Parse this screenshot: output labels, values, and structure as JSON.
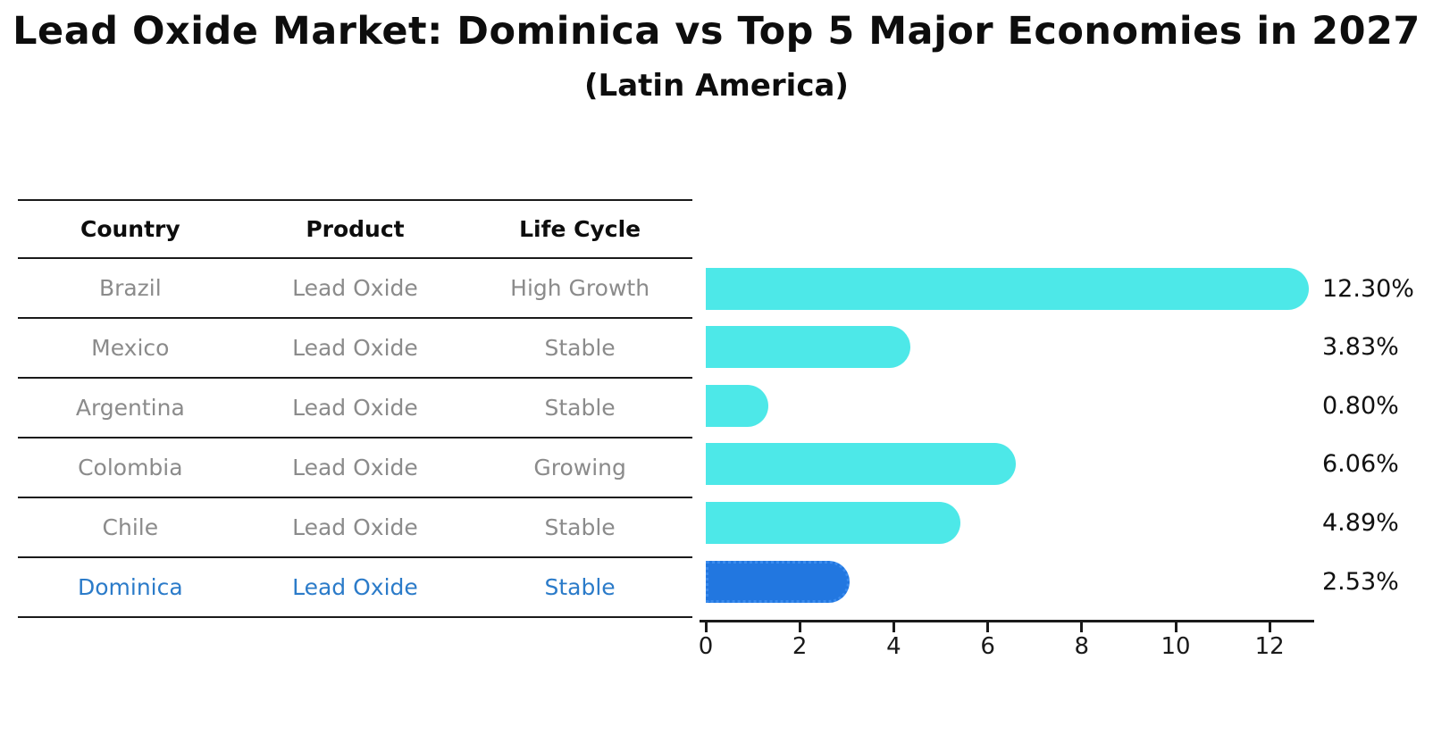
{
  "title": "Lead Oxide Market: Dominica vs Top 5 Major Economies in 2027",
  "subtitle": "(Latin America)",
  "table": {
    "headers": [
      "Country",
      "Product",
      "Life Cycle"
    ],
    "rows": [
      {
        "country": "Brazil",
        "product": "Lead Oxide",
        "life_cycle": "High Growth",
        "highlighted": false
      },
      {
        "country": "Mexico",
        "product": "Lead Oxide",
        "life_cycle": "Stable",
        "highlighted": false
      },
      {
        "country": "Argentina",
        "product": "Lead Oxide",
        "life_cycle": "Stable",
        "highlighted": false
      },
      {
        "country": "Colombia",
        "product": "Lead Oxide",
        "life_cycle": "Growing",
        "highlighted": false
      },
      {
        "country": "Chile",
        "product": "Lead Oxide",
        "life_cycle": "Stable",
        "highlighted": false
      },
      {
        "country": "Dominica",
        "product": "Lead Oxide",
        "life_cycle": "Stable",
        "highlighted": true
      }
    ]
  },
  "chart_data": {
    "type": "bar",
    "orientation": "horizontal",
    "title": "Lead Oxide Market: Dominica vs Top 5 Major Economies in 2027",
    "subtitle": "(Latin America)",
    "categories": [
      "Brazil",
      "Mexico",
      "Argentina",
      "Colombia",
      "Chile",
      "Dominica"
    ],
    "values": [
      12.3,
      3.83,
      0.8,
      6.06,
      4.89,
      2.53
    ],
    "value_labels": [
      "12.30%",
      "3.83%",
      "0.80%",
      "6.06%",
      "4.89%",
      "2.53%"
    ],
    "xlabel": "",
    "ylabel": "",
    "xlim": [
      0,
      13
    ],
    "xticks": [
      0,
      2,
      4,
      6,
      8,
      10,
      12
    ],
    "grid": false,
    "legend_position": "none",
    "bar_color": "#4DE8E8",
    "highlight_bar_color": "#2277E0",
    "highlight_index": 5,
    "highlight_edge_style": "dotted"
  },
  "colors": {
    "body_text_gray": "#8b8b8b",
    "header_text": "#0d0d0d",
    "highlight_text": "#2b7bc9",
    "axis_line": "#1a1a1a"
  }
}
